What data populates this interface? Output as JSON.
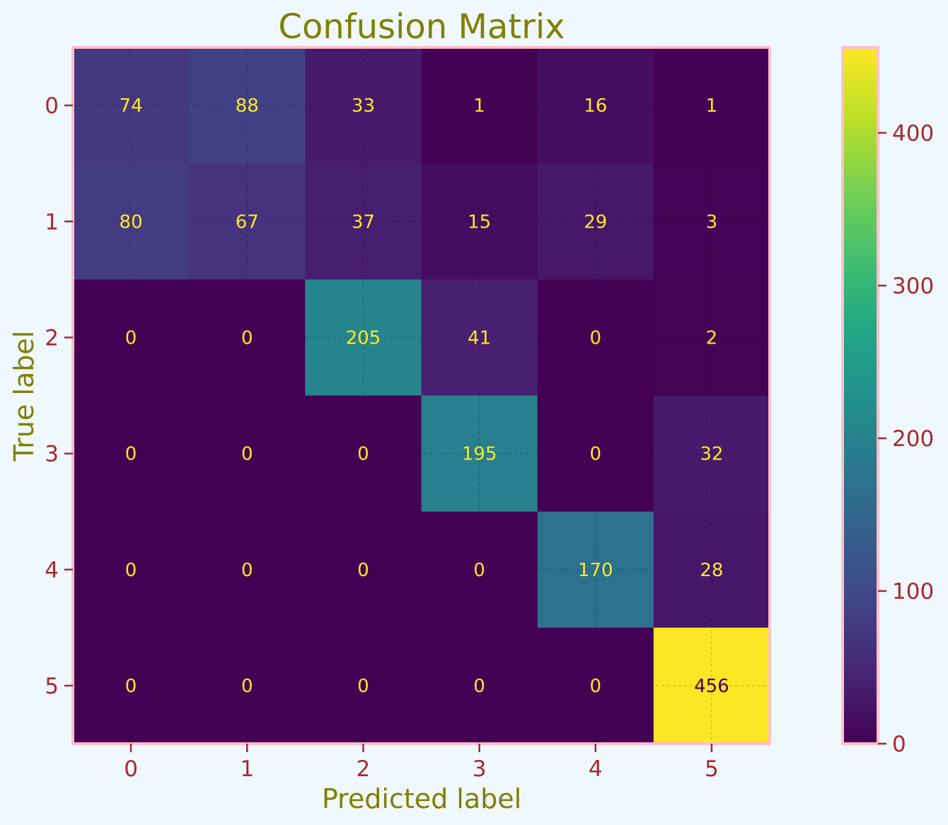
{
  "chart_data": {
    "type": "heatmap",
    "title": "Confusion Matrix",
    "xlabel": "Predicted label",
    "ylabel": "True label",
    "x_categories": [
      "0",
      "1",
      "2",
      "3",
      "4",
      "5"
    ],
    "y_categories": [
      "0",
      "1",
      "2",
      "3",
      "4",
      "5"
    ],
    "values": [
      [
        74,
        88,
        33,
        1,
        16,
        1
      ],
      [
        80,
        67,
        37,
        15,
        29,
        3
      ],
      [
        0,
        0,
        205,
        41,
        0,
        2
      ],
      [
        0,
        0,
        0,
        195,
        0,
        32
      ],
      [
        0,
        0,
        0,
        0,
        170,
        28
      ],
      [
        0,
        0,
        0,
        0,
        0,
        456
      ]
    ],
    "colormap": "viridis",
    "vmin": 0,
    "vmax": 456,
    "colorbar_ticks": [
      "0",
      "100",
      "200",
      "300",
      "400"
    ],
    "grid": true,
    "colors": {
      "background": "#f0f8ff",
      "title": "#808000",
      "axis_label": "#808000",
      "tick_label": "#a52a2a",
      "frame": "#ffc0cb",
      "cell_text_light": "#fde725",
      "cell_text_dark": "#440154"
    }
  }
}
